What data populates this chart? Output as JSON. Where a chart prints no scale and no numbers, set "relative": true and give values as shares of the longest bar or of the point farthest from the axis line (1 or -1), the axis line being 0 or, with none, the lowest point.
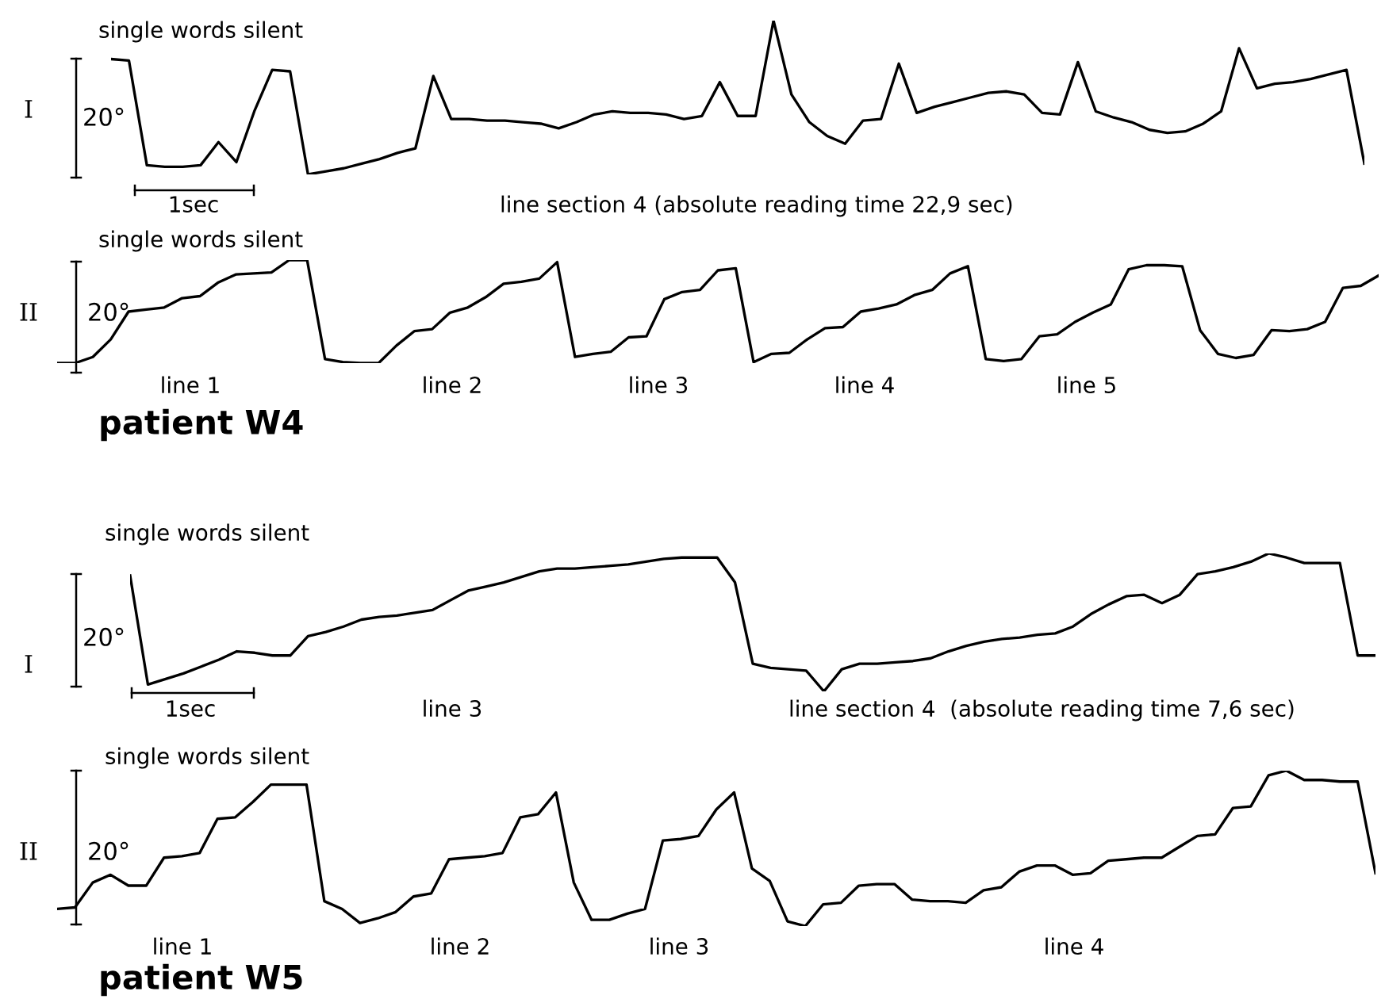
{
  "chart_data": [
    {
      "type": "line",
      "title": "single words silent",
      "ylabel": "I",
      "relative": true,
      "annotations": [
        "20°",
        "1sec",
        "line section 4 (absolute reading time 22,9 sec)"
      ],
      "categories": [
        null,
        null,
        null,
        null,
        null,
        null,
        null,
        null,
        null,
        null,
        null,
        null,
        null,
        null,
        null,
        null,
        null,
        null,
        null,
        null,
        null,
        null,
        null,
        null,
        null,
        null,
        null,
        null,
        null,
        null,
        null,
        null,
        null,
        null,
        null,
        null,
        null,
        null,
        null,
        null,
        null,
        null,
        null,
        null,
        null,
        null,
        null,
        null,
        null,
        null,
        null,
        null,
        null,
        null,
        null,
        null,
        null,
        null,
        null,
        null,
        null,
        null,
        null,
        null,
        null,
        null,
        null,
        null,
        null,
        null,
        null
      ],
      "series": [
        {
          "color": "#000000",
          "values": [
            0.75,
            0.74,
            0.06,
            0.05,
            0.05,
            0.06,
            0.21,
            0.08,
            0.41,
            0.68,
            0.67,
            0,
            0.02,
            0.04,
            0.07,
            0.1,
            0.14,
            0.17,
            0.64,
            0.36,
            0.36,
            0.35,
            0.35,
            0.34,
            0.33,
            0.3,
            0.34,
            0.39,
            0.41,
            0.4,
            0.4,
            0.39,
            0.36,
            0.38,
            0.6,
            0.38,
            0.38,
            1,
            0.52,
            0.34,
            0.25,
            0.2,
            0.35,
            0.36,
            0.72,
            0.4,
            0.44,
            0.47,
            0.5,
            0.53,
            0.54,
            0.52,
            0.4,
            0.39,
            0.73,
            0.41,
            0.37,
            0.34,
            0.29,
            0.27,
            0.28,
            0.33,
            0.41,
            0.82,
            0.56,
            0.59,
            0.6,
            0.62,
            0.65,
            0.68,
            0.07
          ]
        }
      ]
    },
    {
      "type": "line",
      "title": "single words silent",
      "ylabel": "II",
      "relative": true,
      "annotations": [
        "20°",
        "line 1",
        "line 2",
        "line 3",
        "line 4",
        "line 5",
        "patient W4"
      ],
      "categories": [
        null,
        null,
        null,
        null,
        null,
        null,
        null,
        null,
        null,
        null,
        null,
        null,
        null,
        null,
        null,
        null,
        null,
        null,
        null,
        null,
        null,
        null,
        null,
        null,
        null,
        null,
        null,
        null,
        null,
        null,
        null,
        null,
        null,
        null,
        null,
        null,
        null,
        null,
        null,
        null,
        null,
        null,
        null,
        null,
        null,
        null,
        null,
        null,
        null,
        null,
        null,
        null,
        null,
        null,
        null,
        null,
        null,
        null,
        null,
        null,
        null,
        null,
        null,
        null,
        null,
        null,
        null,
        null,
        null,
        null,
        null,
        null,
        null,
        null,
        null
      ],
      "series": [
        {
          "color": "#000000",
          "values": [
            0,
            0,
            0.06,
            0.23,
            0.5,
            0.52,
            0.54,
            0.63,
            0.65,
            0.78,
            0.86,
            0.87,
            0.88,
            1,
            1,
            0.04,
            0.01,
            0,
            0,
            0.17,
            0.31,
            0.33,
            0.49,
            0.54,
            0.64,
            0.77,
            0.79,
            0.82,
            0.98,
            0.06,
            0.09,
            0.11,
            0.25,
            0.26,
            0.62,
            0.69,
            0.71,
            0.9,
            0.92,
            0.01,
            0.09,
            0.1,
            0.23,
            0.34,
            0.35,
            0.5,
            0.53,
            0.57,
            0.66,
            0.71,
            0.87,
            0.94,
            0.04,
            0.02,
            0.04,
            0.26,
            0.28,
            0.4,
            0.49,
            0.57,
            0.91,
            0.95,
            0.95,
            0.94,
            0.32,
            0.09,
            0.05,
            0.08,
            0.32,
            0.31,
            0.33,
            0.4,
            0.73,
            0.75,
            0.85
          ]
        }
      ]
    },
    {
      "type": "line",
      "title": "single words silent",
      "ylabel": "I",
      "relative": true,
      "annotations": [
        "20°",
        "1sec",
        "line 3",
        "line section 4  (absolute reading time 7,6 sec)"
      ],
      "categories": [
        null,
        null,
        null,
        null,
        null,
        null,
        null,
        null,
        null,
        null,
        null,
        null,
        null,
        null,
        null,
        null,
        null,
        null,
        null,
        null,
        null,
        null,
        null,
        null,
        null,
        null,
        null,
        null,
        null,
        null,
        null,
        null,
        null,
        null,
        null,
        null,
        null,
        null,
        null,
        null,
        null,
        null,
        null,
        null,
        null,
        null,
        null,
        null,
        null,
        null,
        null,
        null,
        null,
        null,
        null,
        null,
        null,
        null,
        null,
        null,
        null,
        null,
        null,
        null,
        null,
        null,
        null,
        null,
        null,
        null,
        null
      ],
      "series": [
        {
          "color": "#000000",
          "values": [
            0.84,
            0.05,
            0.09,
            0.13,
            0.18,
            0.23,
            0.29,
            0.28,
            0.26,
            0.26,
            0.4,
            0.43,
            0.47,
            0.52,
            0.54,
            0.55,
            0.57,
            0.59,
            0.66,
            0.73,
            0.76,
            0.79,
            0.83,
            0.87,
            0.89,
            0.89,
            0.9,
            0.91,
            0.92,
            0.94,
            0.96,
            0.97,
            0.97,
            0.97,
            0.79,
            0.2,
            0.17,
            0.16,
            0.15,
            0,
            0.16,
            0.2,
            0.2,
            0.21,
            0.22,
            0.24,
            0.29,
            0.33,
            0.36,
            0.38,
            0.39,
            0.41,
            0.42,
            0.47,
            0.56,
            0.63,
            0.69,
            0.7,
            0.64,
            0.7,
            0.85,
            0.87,
            0.9,
            0.94,
            1,
            0.97,
            0.93,
            0.93,
            0.93,
            0.26,
            0.26
          ]
        }
      ]
    },
    {
      "type": "line",
      "title": "single words silent",
      "ylabel": "II",
      "relative": true,
      "annotations": [
        "20°",
        "line 1",
        "line 2",
        "line 3",
        "line 4",
        "patient W5"
      ],
      "categories": [
        null,
        null,
        null,
        null,
        null,
        null,
        null,
        null,
        null,
        null,
        null,
        null,
        null,
        null,
        null,
        null,
        null,
        null,
        null,
        null,
        null,
        null,
        null,
        null,
        null,
        null,
        null,
        null,
        null,
        null,
        null,
        null,
        null,
        null,
        null,
        null,
        null,
        null,
        null,
        null,
        null,
        null,
        null,
        null,
        null,
        null,
        null,
        null,
        null,
        null,
        null,
        null,
        null,
        null,
        null,
        null,
        null,
        null,
        null,
        null,
        null,
        null,
        null,
        null,
        null,
        null,
        null,
        null,
        null,
        null,
        null,
        null,
        null,
        null,
        null
      ],
      "series": [
        {
          "color": "#000000",
          "values": [
            0.11,
            0.12,
            0.28,
            0.33,
            0.26,
            0.26,
            0.44,
            0.45,
            0.47,
            0.69,
            0.7,
            0.8,
            0.91,
            0.91,
            0.91,
            0.16,
            0.11,
            0.02,
            0.05,
            0.09,
            0.19,
            0.21,
            0.43,
            0.44,
            0.45,
            0.47,
            0.7,
            0.72,
            0.86,
            0.28,
            0.04,
            0.04,
            0.08,
            0.11,
            0.55,
            0.56,
            0.58,
            0.75,
            0.86,
            0.37,
            0.29,
            0.03,
            0,
            0.14,
            0.15,
            0.26,
            0.27,
            0.27,
            0.17,
            0.16,
            0.16,
            0.15,
            0.23,
            0.25,
            0.35,
            0.39,
            0.39,
            0.33,
            0.34,
            0.42,
            0.43,
            0.44,
            0.44,
            0.51,
            0.58,
            0.59,
            0.76,
            0.77,
            0.97,
            1,
            0.94,
            0.94,
            0.93,
            0.93,
            0.34
          ]
        }
      ]
    }
  ]
}
